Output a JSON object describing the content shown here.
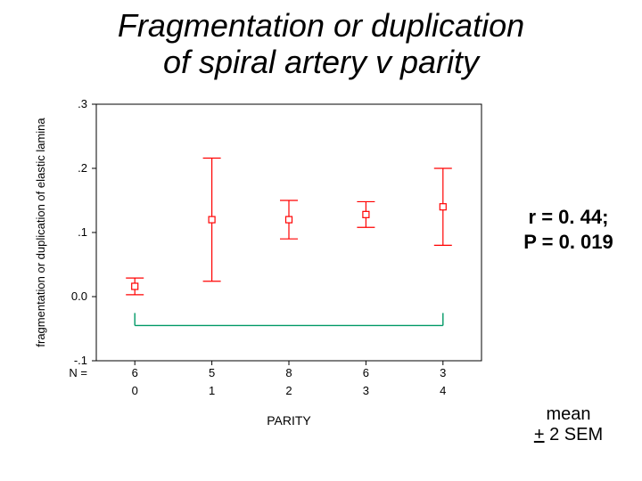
{
  "title_line1": "Fragmentation or duplication",
  "title_line2": "of spiral artery v parity",
  "stats_line1": "r = 0. 44;",
  "stats_line2": "P = 0. 019",
  "footnote_line1": "mean",
  "footnote_pm": "+",
  "footnote_rest": " 2 SEM",
  "chart": {
    "type": "error-bar",
    "ylabel": "fragmentation or duplication of elastic lamina",
    "xlabel": "PARITY",
    "n_prefix": "N =",
    "ylim": [
      -0.1,
      0.3
    ],
    "yticks": [
      -0.1,
      0.0,
      0.1,
      0.2,
      0.3
    ],
    "ytick_labels": [
      "-.1",
      "0.0",
      ".1",
      ".2",
      ".3"
    ],
    "categories": [
      "0",
      "1",
      "2",
      "3",
      "4"
    ],
    "counts": [
      "6",
      "5",
      "8",
      "6",
      "3"
    ],
    "means": [
      0.016,
      0.12,
      0.12,
      0.128,
      0.14
    ],
    "lower": [
      0.003,
      0.024,
      0.09,
      0.108,
      0.08
    ],
    "upper": [
      0.029,
      0.216,
      0.15,
      0.148,
      0.2
    ],
    "series_color": "#ff0000",
    "axis_color": "#000000",
    "bracket_color": "#009966",
    "background_color": "#ffffff",
    "tick_fontsize": 13,
    "label_fontsize": 13,
    "marker_size": 7,
    "line_width": 1.2,
    "cap_halfwidth": 10,
    "bracket_from_index": 0,
    "bracket_to_index": 4,
    "bracket_y": -0.045
  }
}
